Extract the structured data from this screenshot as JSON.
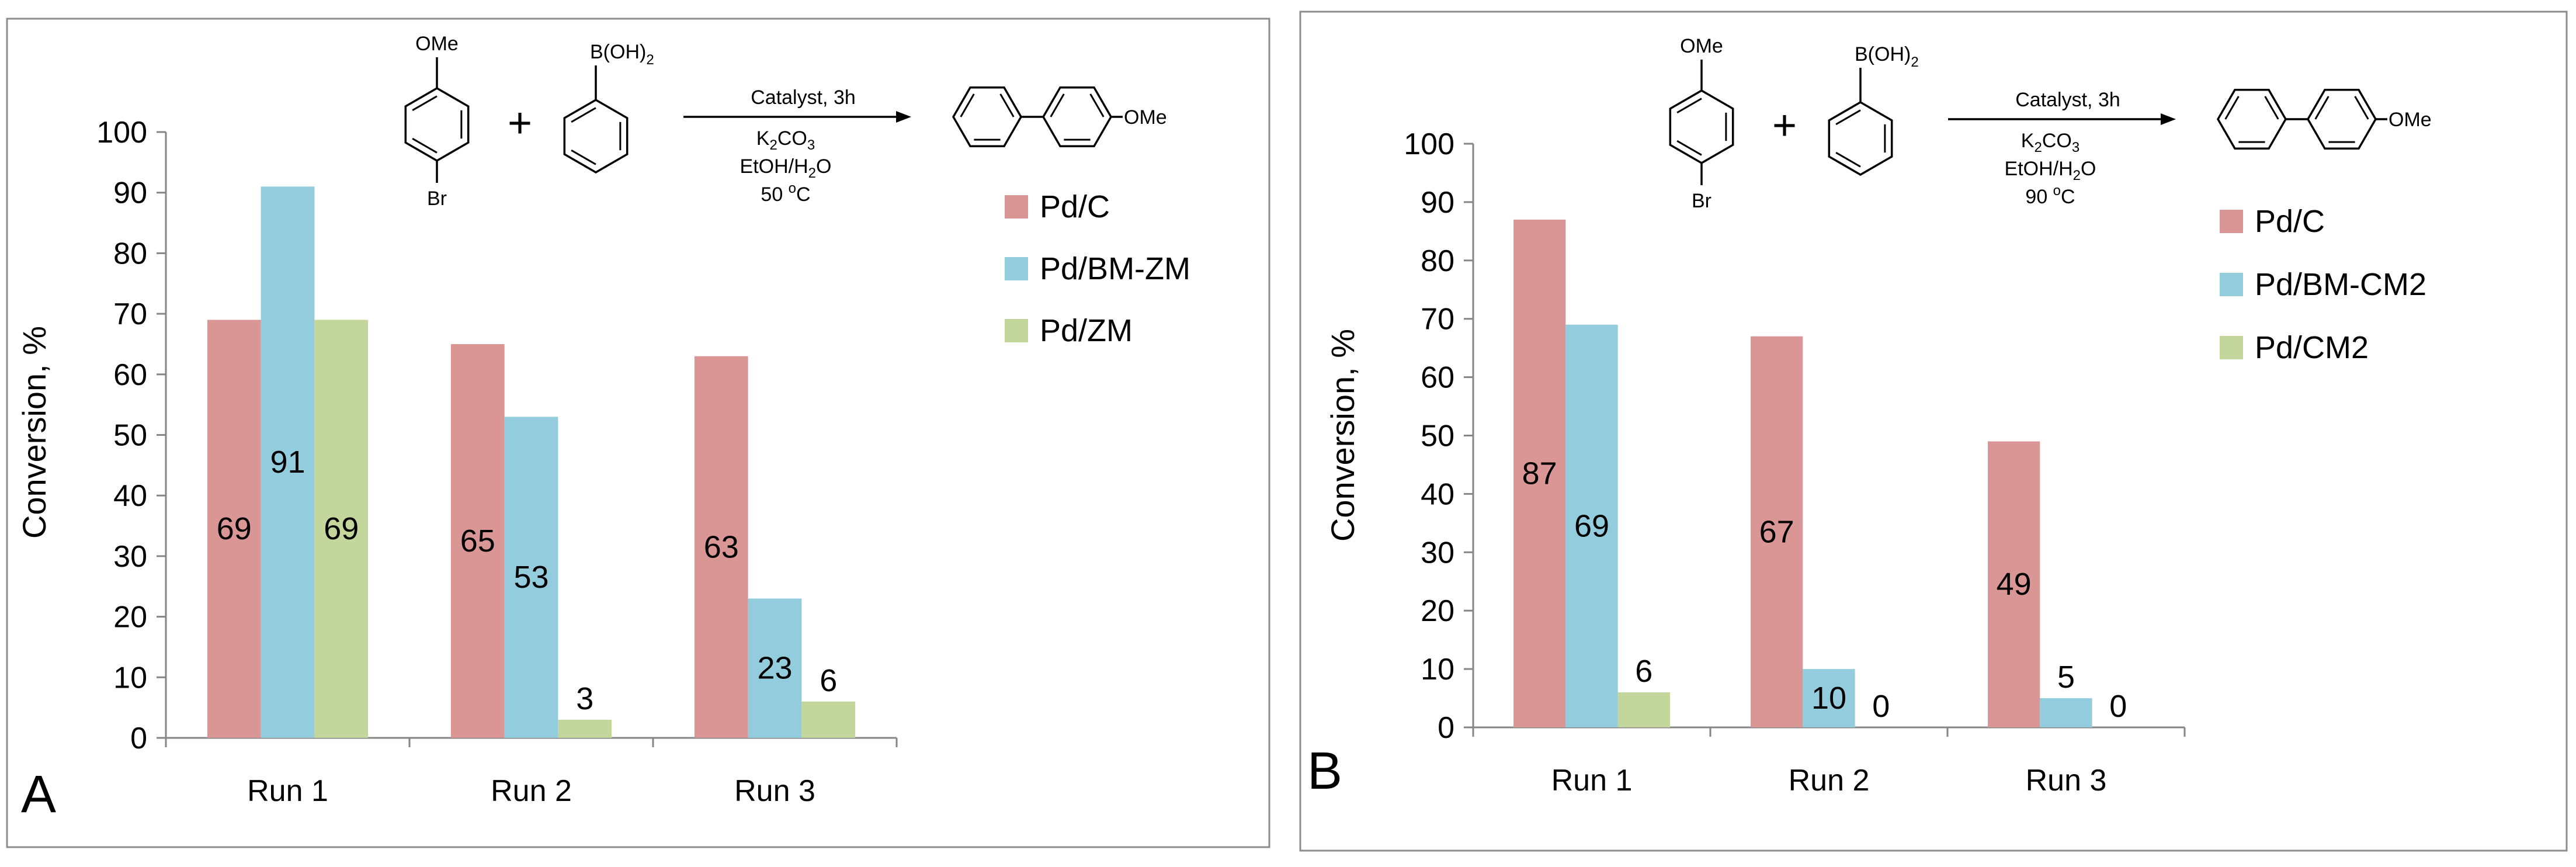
{
  "colors": {
    "pd_c": "#d99694",
    "pd_bm": "#93cddd",
    "pd_support": "#c3d69b",
    "axis": "#868686",
    "text": "#000000",
    "frame": "#8c8c8c"
  },
  "panels": [
    {
      "panel_label": "A",
      "reaction": {
        "reactant1_top": "OMe",
        "reactant1_bottom": "Br",
        "plus": "+",
        "reactant2_top": "B(OH)",
        "reactant2_top_sub": "2",
        "product_label": "OMe",
        "catalyst": "Catalyst, 3h",
        "base_main": "K",
        "base_sub": "2",
        "base_rest": "CO",
        "base_sub2": "3",
        "solvent_main": "EtOH/H",
        "solvent_sub": "2",
        "solvent_rest": "O",
        "temp_value": "50 ",
        "temp_sup": "o",
        "temp_unit": "C"
      }
    },
    {
      "panel_label": "B",
      "reaction": {
        "reactant1_top": "OMe",
        "reactant1_bottom": "Br",
        "plus": "+",
        "reactant2_top": "B(OH)",
        "reactant2_top_sub": "2",
        "product_label": "OMe",
        "catalyst": "Catalyst, 3h",
        "base_main": "K",
        "base_sub": "2",
        "base_rest": "CO",
        "base_sub2": "3",
        "solvent_main": "EtOH/H",
        "solvent_sub": "2",
        "solvent_rest": "O",
        "temp_value": "90 ",
        "temp_sup": "o",
        "temp_unit": "C"
      }
    }
  ],
  "chart_data": [
    {
      "type": "bar",
      "panel": "A",
      "title": "",
      "xlabel": "",
      "ylabel": "Conversion, %",
      "ylim": [
        0,
        100
      ],
      "yticks": [
        0,
        10,
        20,
        30,
        40,
        50,
        60,
        70,
        80,
        90,
        100
      ],
      "categories": [
        "Run 1",
        "Run 2",
        "Run 3"
      ],
      "legend_position": "right",
      "series": [
        {
          "name": "Pd/C",
          "color": "#d99694",
          "values": [
            69,
            65,
            63
          ],
          "labels": [
            "69",
            "65",
            "63"
          ]
        },
        {
          "name": "Pd/BM-ZM",
          "color": "#93cddd",
          "values": [
            91,
            53,
            23
          ],
          "labels": [
            "91",
            "53",
            "23"
          ]
        },
        {
          "name": "Pd/ZM",
          "color": "#c3d69b",
          "values": [
            69,
            3,
            6
          ],
          "labels": [
            "69",
            "3",
            "6"
          ]
        }
      ]
    },
    {
      "type": "bar",
      "panel": "B",
      "title": "",
      "xlabel": "",
      "ylabel": "Conversion, %",
      "ylim": [
        0,
        100
      ],
      "yticks": [
        0,
        10,
        20,
        30,
        40,
        50,
        60,
        70,
        80,
        90,
        100
      ],
      "categories": [
        "Run 1",
        "Run 2",
        "Run 3"
      ],
      "legend_position": "right",
      "series": [
        {
          "name": "Pd/C",
          "color": "#d99694",
          "values": [
            87,
            67,
            49
          ],
          "labels": [
            "87",
            "67",
            "49"
          ]
        },
        {
          "name": "Pd/BM-CM2",
          "color": "#93cddd",
          "values": [
            69,
            10,
            5
          ],
          "labels": [
            "69",
            "10",
            "5"
          ]
        },
        {
          "name": "Pd/CM2",
          "color": "#c3d69b",
          "values": [
            6,
            0,
            0
          ],
          "labels": [
            "6",
            "0",
            "0"
          ]
        }
      ]
    }
  ]
}
